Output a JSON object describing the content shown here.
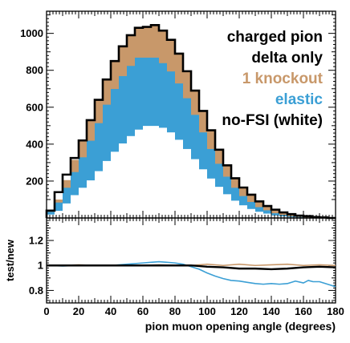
{
  "chart_data": [
    {
      "type": "bar",
      "subtype": "stacked-histogram",
      "title": "",
      "xlabel": "",
      "ylabel": "",
      "xlim": [
        0,
        180
      ],
      "ylim": [
        0,
        1120
      ],
      "bin_width": 5,
      "x_bin_edges_start": [
        0,
        5,
        10,
        15,
        20,
        25,
        30,
        35,
        40,
        45,
        50,
        55,
        60,
        65,
        70,
        75,
        80,
        85,
        90,
        95,
        100,
        105,
        110,
        115,
        120,
        125,
        130,
        135,
        140,
        145,
        150,
        155,
        160,
        165,
        170,
        175
      ],
      "xticks": [
        0,
        20,
        40,
        60,
        80,
        100,
        120,
        140,
        160,
        180
      ],
      "yticks": [
        200,
        400,
        600,
        800,
        1000
      ],
      "legend_position": "top-right",
      "legend": [
        {
          "label": "charged pion",
          "color": "#000000"
        },
        {
          "label": "delta only",
          "color": "#000000"
        },
        {
          "label": "1 knockout",
          "color": "#c8986a"
        },
        {
          "label": "elastic",
          "color": "#3b9fd5"
        },
        {
          "label": "no-FSI (white)",
          "color": "#000000"
        }
      ],
      "series": [
        {
          "name": "no-FSI (white)",
          "color": "#ffffff",
          "values": [
            20,
            40,
            80,
            125,
            165,
            205,
            255,
            310,
            360,
            405,
            445,
            480,
            500,
            500,
            490,
            465,
            425,
            375,
            320,
            265,
            215,
            170,
            130,
            95,
            70,
            50,
            35,
            25,
            15,
            10,
            6,
            4,
            2,
            1,
            1,
            0
          ]
        },
        {
          "name": "elastic",
          "color": "#3b9fd5",
          "values": [
            15,
            45,
            85,
            125,
            165,
            215,
            260,
            305,
            340,
            365,
            380,
            390,
            370,
            370,
            350,
            330,
            305,
            275,
            240,
            200,
            160,
            125,
            95,
            70,
            50,
            38,
            25,
            18,
            12,
            8,
            5,
            3,
            2,
            1,
            0,
            0
          ]
        },
        {
          "name": "1 knockout",
          "color": "#c8986a",
          "values": [
            5,
            15,
            40,
            65,
            90,
            110,
            125,
            135,
            150,
            160,
            165,
            160,
            165,
            175,
            175,
            170,
            160,
            145,
            130,
            115,
            100,
            75,
            60,
            50,
            45,
            38,
            30,
            22,
            18,
            12,
            10,
            6,
            6,
            3,
            2,
            0
          ]
        }
      ],
      "outline": {
        "name": "charged pion",
        "color": "#000000",
        "values": [
          40,
          140,
          235,
          325,
          420,
          530,
          640,
          750,
          850,
          930,
          990,
          1030,
          1035,
          1045,
          1015,
          965,
          890,
          795,
          690,
          580,
          475,
          370,
          285,
          215,
          165,
          126,
          90,
          65,
          45,
          30,
          21,
          13,
          10,
          5,
          3,
          0
        ]
      }
    },
    {
      "type": "line",
      "title": "",
      "xlabel": "pion muon opening angle (degrees)",
      "ylabel": "test/new",
      "xlim": [
        0,
        180
      ],
      "ylim": [
        0.7,
        1.38
      ],
      "xticks": [
        0,
        20,
        40,
        60,
        80,
        100,
        120,
        140,
        160,
        180
      ],
      "yticks": [
        0.8,
        1,
        1.2
      ],
      "xtick_labels": [
        "0",
        "20",
        "40",
        "60",
        "80",
        "100",
        "120",
        "140",
        "160",
        "180"
      ],
      "ytick_labels": [
        "0.8",
        "1",
        "1.2"
      ],
      "series": [
        {
          "name": "charged pion",
          "color": "#000000",
          "x": [
            0,
            20,
            40,
            60,
            80,
            90,
            100,
            110,
            120,
            130,
            140,
            150,
            160,
            170,
            180
          ],
          "y": [
            1.0,
            1.0,
            1.0,
            1.0,
            1.0,
            1.0,
            0.99,
            0.985,
            0.975,
            0.975,
            0.97,
            0.975,
            0.985,
            0.99,
            0.985
          ]
        },
        {
          "name": "1 knockout",
          "color": "#c8986a",
          "x": [
            0,
            10,
            20,
            30,
            40,
            50,
            60,
            70,
            80,
            90,
            100,
            110,
            120,
            130,
            140,
            150,
            160,
            170,
            180
          ],
          "y": [
            1.0,
            1.0,
            1.005,
            1.0,
            1.0,
            1.005,
            1.0,
            1.005,
            1.0,
            1.0,
            1.01,
            1.0,
            1.01,
            1.0,
            1.005,
            1.01,
            1.0,
            1.005,
            1.0
          ]
        },
        {
          "name": "elastic",
          "color": "#3b9fd5",
          "x": [
            0,
            10,
            20,
            30,
            40,
            50,
            60,
            65,
            70,
            75,
            80,
            85,
            90,
            95,
            100,
            105,
            110,
            115,
            120,
            125,
            130,
            135,
            140,
            145,
            150,
            155,
            160,
            163,
            166,
            170,
            175,
            180
          ],
          "y": [
            1.0,
            0.995,
            1.0,
            1.0,
            1.0,
            1.01,
            1.02,
            1.025,
            1.03,
            1.025,
            1.02,
            1.01,
            0.99,
            0.97,
            0.94,
            0.915,
            0.895,
            0.88,
            0.875,
            0.865,
            0.855,
            0.85,
            0.855,
            0.85,
            0.855,
            0.875,
            0.86,
            0.88,
            0.87,
            0.87,
            0.85,
            0.83
          ]
        }
      ]
    }
  ]
}
